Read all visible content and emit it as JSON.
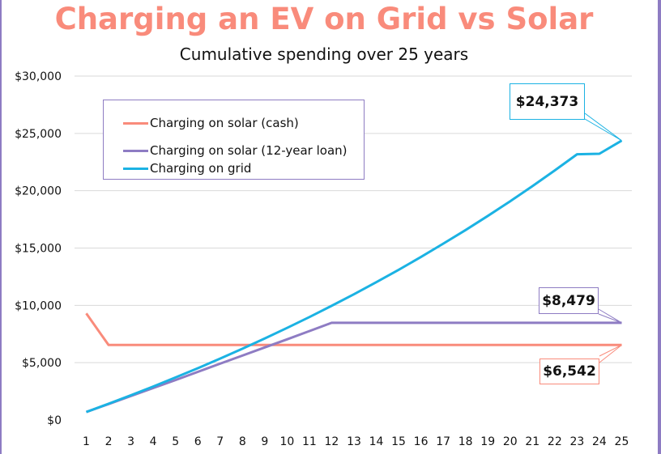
{
  "colors": {
    "title": "#f98b7b",
    "cash": "#f98b7b",
    "loan": "#8e7cc3",
    "grid": "#1bb2e3",
    "gridline": "#d9d9d9"
  },
  "chart_data": {
    "type": "line",
    "title": "Charging an EV on Grid vs Solar",
    "subtitle": "Cumulative spending over 25 years",
    "xlabel": "",
    "ylabel": "",
    "ylim": [
      0,
      30000
    ],
    "grid": true,
    "legend_position": "top-left",
    "x": [
      1,
      2,
      3,
      4,
      5,
      6,
      7,
      8,
      9,
      10,
      11,
      12,
      13,
      14,
      15,
      16,
      17,
      18,
      19,
      20,
      21,
      22,
      23,
      24,
      25
    ],
    "x_tick_labels": [
      "1",
      "2",
      "3",
      "4",
      "5",
      "6",
      "7",
      "8",
      "9",
      "10",
      "11",
      "12",
      "13",
      "14",
      "15",
      "16",
      "17",
      "18",
      "19",
      "20",
      "21",
      "22",
      "23",
      "24",
      "25"
    ],
    "y_ticks": [
      0,
      5000,
      10000,
      15000,
      20000,
      25000,
      30000
    ],
    "y_tick_labels": [
      "$0",
      "$5,000",
      "$10,000",
      "$15,000",
      "$20,000",
      "$25,000",
      "$30,000"
    ],
    "series": [
      {
        "name": "Charging on solar (cash)",
        "color": "#f98b7b",
        "values": [
          9300,
          6542,
          6542,
          6542,
          6542,
          6542,
          6542,
          6542,
          6542,
          6542,
          6542,
          6542,
          6542,
          6542,
          6542,
          6542,
          6542,
          6542,
          6542,
          6542,
          6542,
          6542,
          6542,
          6542,
          6542
        ]
      },
      {
        "name": "Charging on solar (12-year loan)",
        "color": "#8e7cc3",
        "values": [
          700,
          1390,
          2090,
          2790,
          3490,
          4200,
          4910,
          5620,
          6330,
          7040,
          7760,
          8479,
          8479,
          8479,
          8479,
          8479,
          8479,
          8479,
          8479,
          8479,
          8479,
          8479,
          8479,
          8479,
          8479
        ]
      },
      {
        "name": "Charging on grid",
        "color": "#1bb2e3",
        "values": [
          700,
          1420,
          2160,
          2920,
          3710,
          4520,
          5360,
          6220,
          7110,
          8030,
          8980,
          9960,
          10970,
          12020,
          13100,
          14220,
          15380,
          16570,
          17800,
          19080,
          20400,
          21770,
          23180,
          24373,
          24373
        ]
      }
    ],
    "annotations": [
      {
        "series": "Charging on grid",
        "label": "$24,373"
      },
      {
        "series": "Charging on solar (12-year loan)",
        "label": "$8,479"
      },
      {
        "series": "Charging on solar (cash)",
        "label": "$6,542"
      }
    ]
  }
}
